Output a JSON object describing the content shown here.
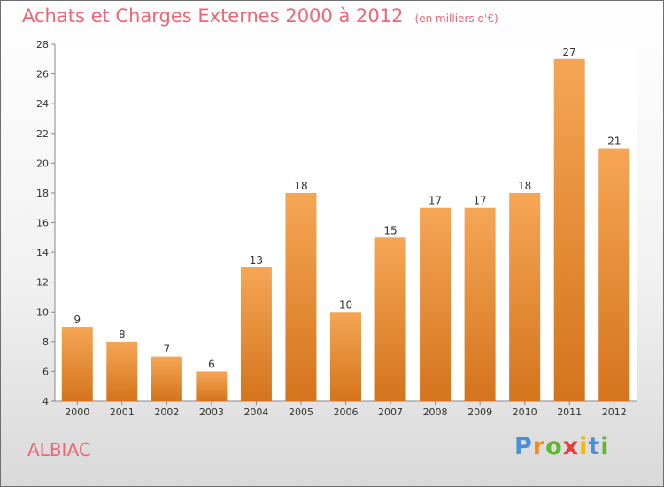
{
  "header": {
    "title": "Achats et Charges Externes 2000 à 2012",
    "subtitle": "(en milliers d'€)"
  },
  "footer": {
    "place": "ALBIAC",
    "logo_letters": [
      {
        "char": "P",
        "color": "#4a90d9"
      },
      {
        "char": "r",
        "color": "#f08c1e"
      },
      {
        "char": "o",
        "color": "#5fb82e"
      },
      {
        "char": "x",
        "color": "#e93b3b"
      },
      {
        "char": "i",
        "color": "#f5b800"
      },
      {
        "char": "t",
        "color": "#4a90d9"
      },
      {
        "char": "i",
        "color": "#5fb82e"
      }
    ]
  },
  "chart_data": {
    "type": "bar",
    "title": "Achats et Charges Externes 2000 à 2012",
    "subtitle": "(en milliers d'€)",
    "categories": [
      "2000",
      "2001",
      "2002",
      "2003",
      "2004",
      "2005",
      "2006",
      "2007",
      "2008",
      "2009",
      "2010",
      "2011",
      "2012"
    ],
    "values": [
      9,
      8,
      7,
      6,
      13,
      18,
      10,
      15,
      17,
      17,
      18,
      27,
      21
    ],
    "ylim": [
      4,
      28
    ],
    "yticks": [
      4,
      6,
      8,
      10,
      12,
      14,
      16,
      18,
      20,
      22,
      24,
      26,
      28
    ],
    "grid": false,
    "data_labels": true,
    "colors": {
      "bar_top": "#f5a655",
      "bar_bottom": "#d4741c",
      "label": "#333333",
      "axis": "#888888"
    }
  }
}
